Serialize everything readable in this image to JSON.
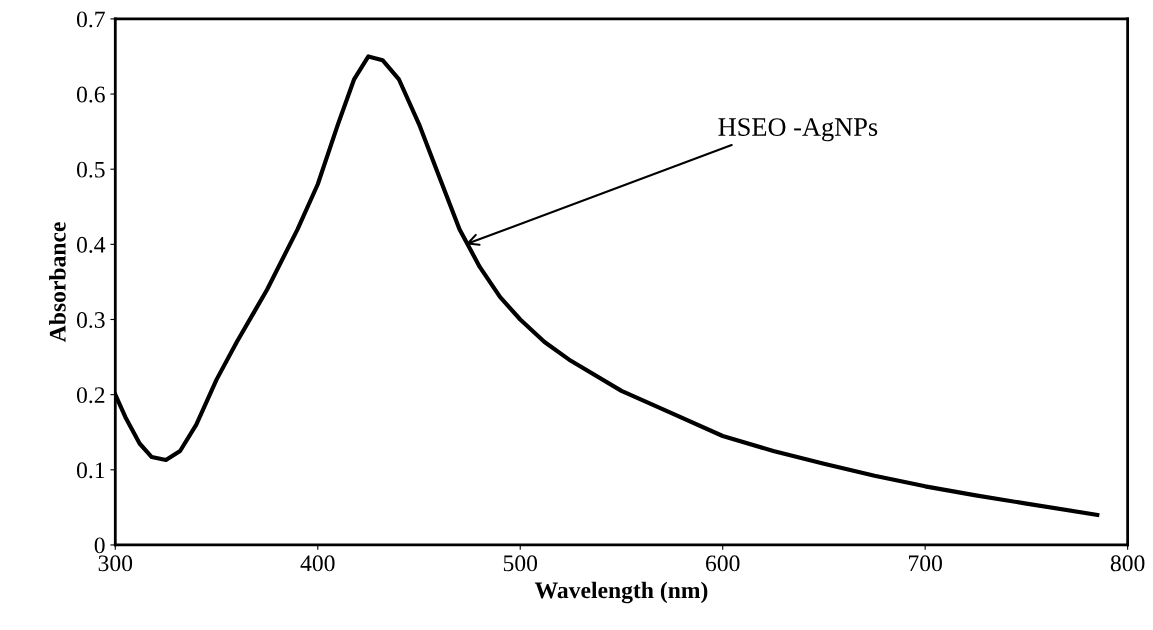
{
  "chart_data": {
    "type": "line",
    "xlabel": "Wavelength (nm)",
    "ylabel": "Absorbance",
    "x": [
      300,
      305,
      312,
      318,
      325,
      332,
      340,
      350,
      360,
      375,
      390,
      400,
      410,
      418,
      425,
      432,
      440,
      450,
      460,
      470,
      480,
      490,
      500,
      512,
      525,
      550,
      575,
      600,
      625,
      650,
      675,
      700,
      725,
      750,
      785
    ],
    "series": [
      {
        "color": "#000000",
        "values": [
          0.2,
          0.17,
          0.135,
          0.117,
          0.113,
          0.125,
          0.16,
          0.22,
          0.27,
          0.34,
          0.42,
          0.48,
          0.56,
          0.62,
          0.65,
          0.645,
          0.62,
          0.56,
          0.49,
          0.42,
          0.37,
          0.33,
          0.3,
          0.27,
          0.245,
          0.205,
          0.175,
          0.145,
          0.125,
          0.108,
          0.092,
          0.078,
          0.066,
          0.055,
          0.04
        ]
      }
    ],
    "xlim": [
      300,
      800
    ],
    "xticks": [
      300,
      400,
      500,
      600,
      700,
      800
    ],
    "ylim": [
      0,
      0.7
    ],
    "yticks": [
      0,
      0.1,
      0.2,
      0.3,
      0.4,
      0.5,
      0.6,
      0.7
    ],
    "annotations": [
      {
        "text": "HSEO -AgNPs",
        "x": 473,
        "y": 0.4
      }
    ],
    "grid": false,
    "marker": "none",
    "line_style": "solid"
  }
}
